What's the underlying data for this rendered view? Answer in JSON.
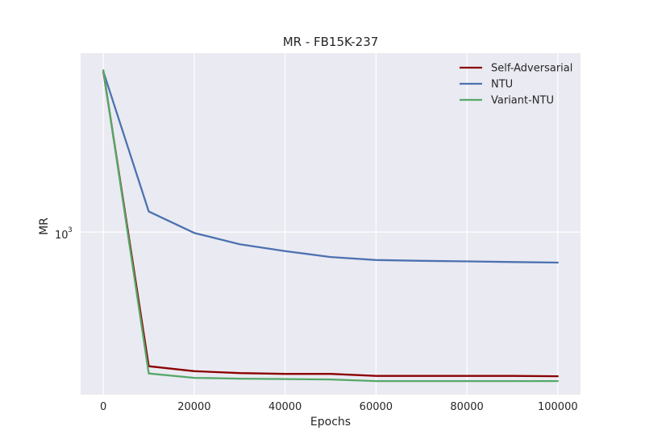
{
  "chart_data": {
    "type": "line",
    "title": "MR - FB15K-237",
    "xlabel": "Epochs",
    "ylabel": "MR",
    "x": [
      0,
      10000,
      20000,
      30000,
      40000,
      50000,
      60000,
      70000,
      80000,
      90000,
      100000
    ],
    "xlim": [
      -5000,
      105000
    ],
    "xticks": [
      0,
      20000,
      40000,
      60000,
      80000,
      100000
    ],
    "xtick_labels": [
      "0",
      "20000",
      "40000",
      "60000",
      "80000",
      "100000"
    ],
    "yscale": "log",
    "ylim": [
      380,
      2900
    ],
    "yticks": [
      1000
    ],
    "ytick_labels": [
      "10",
      "3"
    ],
    "grid": true,
    "legend_position": "top-right",
    "series": [
      {
        "name": "Self-Adversarial",
        "color": "#8b0000",
        "values": [
          2600,
          450,
          437,
          432,
          430,
          430,
          425,
          425,
          425,
          425,
          424
        ]
      },
      {
        "name": "NTU",
        "color": "#4c72b0",
        "values": [
          2600,
          1130,
          995,
          930,
          893,
          862,
          847,
          843,
          840,
          837,
          834
        ]
      },
      {
        "name": "Variant-NTU",
        "color": "#55a868",
        "values": [
          2620,
          431,
          420,
          418,
          417,
          416,
          412,
          412,
          412,
          412,
          412
        ]
      }
    ]
  }
}
